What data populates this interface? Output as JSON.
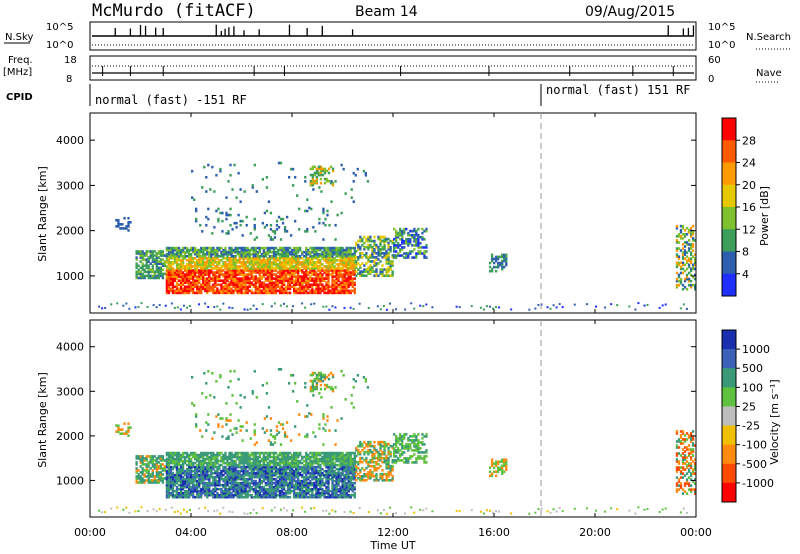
{
  "header": {
    "station": "McMurdo (fitACF)",
    "beam": "Beam 14",
    "date": "09/Aug/2015"
  },
  "panels": {
    "nsky": {
      "label": "N.Sky",
      "right_label": "N.Search",
      "left_ticks": [
        "10^5",
        "10^0"
      ],
      "right_ticks": [
        "10^5",
        "10^0"
      ]
    },
    "freq": {
      "label": "Freq.",
      "unit": "[MHz]",
      "right_label": "Nave",
      "left_ticks": [
        "18",
        "8"
      ],
      "right_ticks": [
        "60",
        "0"
      ]
    },
    "cpid": {
      "label": "CPID",
      "segments": [
        {
          "text": "normal (fast) -151 RF",
          "start": "00:00",
          "end": "18:00"
        },
        {
          "text": "normal (fast) 151 RF",
          "start": "18:00",
          "end": "24:00"
        }
      ]
    }
  },
  "chart_data": [
    {
      "type": "heatmap",
      "title": "Power",
      "xlabel": "Time UT",
      "ylabel": "Slant Range [km]",
      "xlim": [
        "00:00",
        "24:00"
      ],
      "ylim": [
        180,
        4600
      ],
      "yticks": [
        "1000",
        "2000",
        "3000",
        "4000"
      ],
      "xticks": [
        "00:00",
        "04:00",
        "08:00",
        "12:00",
        "16:00",
        "20:00",
        "00:00"
      ],
      "colorbar": {
        "label": "Power [dB]",
        "ticks": [
          "28",
          "24",
          "20",
          "16",
          "12",
          "8",
          "4"
        ],
        "colors": [
          "#ff0000",
          "#ff5a00",
          "#ff9b00",
          "#e6c800",
          "#7fc02e",
          "#3c9e5a",
          "#2e5fae",
          "#1e2fff"
        ]
      },
      "regions": [
        {
          "start": "01:45",
          "end": "03:00",
          "range_km": [
            900,
            1600
          ],
          "level": "12-16 dB"
        },
        {
          "start": "03:00",
          "end": "10:30",
          "range_km": [
            600,
            1600
          ],
          "level": "16-28 dB"
        },
        {
          "start": "10:30",
          "end": "13:30",
          "range_km": [
            900,
            2100
          ],
          "level": "8-16 dB"
        },
        {
          "start": "15:45",
          "end": "16:30",
          "range_km": [
            1100,
            1500
          ],
          "level": "4-8 dB"
        },
        {
          "start": "23:15",
          "end": "24:00",
          "range_km": [
            700,
            2100
          ],
          "level": "8-16 dB"
        }
      ]
    },
    {
      "type": "heatmap",
      "title": "Velocity",
      "xlabel": "Time UT",
      "ylabel": "Slant Range [km]",
      "xlim": [
        "00:00",
        "24:00"
      ],
      "ylim": [
        180,
        4600
      ],
      "yticks": [
        "1000",
        "2000",
        "3000",
        "4000"
      ],
      "xticks": [
        "00:00",
        "04:00",
        "08:00",
        "12:00",
        "16:00",
        "20:00",
        "00:00"
      ],
      "colorbar": {
        "label": "Velocity [m s⁻¹]",
        "ticks": [
          "1000",
          "500",
          "100",
          "25",
          "-25",
          "-100",
          "-500",
          "-1000"
        ],
        "colors": [
          "#1a2fb0",
          "#3b62b8",
          "#3a9a78",
          "#60c040",
          "#bdbdbd",
          "#f0c000",
          "#ff8a10",
          "#ff4a00",
          "#ff0000"
        ]
      },
      "regions": [
        {
          "start": "01:45",
          "end": "03:00",
          "range_km": [
            900,
            1600
          ],
          "level": "100-500 m/s"
        },
        {
          "start": "03:00",
          "end": "10:30",
          "range_km": [
            600,
            1600
          ],
          "level": "100-1000 m/s"
        },
        {
          "start": "10:30",
          "end": "13:30",
          "range_km": [
            900,
            2100
          ],
          "level": "-500 to 500 m/s"
        },
        {
          "start": "15:45",
          "end": "16:30",
          "range_km": [
            1100,
            1500
          ],
          "level": "-500 to 100 m/s"
        },
        {
          "start": "23:15",
          "end": "24:00",
          "range_km": [
            700,
            2100
          ],
          "level": "-1000 to 500 m/s"
        }
      ]
    }
  ]
}
